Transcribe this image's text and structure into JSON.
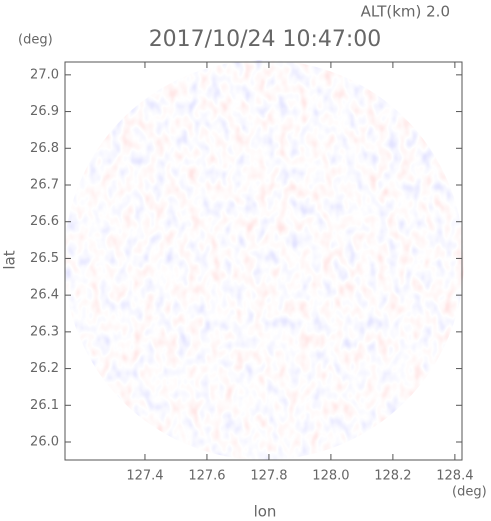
{
  "chart_data": {
    "type": "radar-ppi",
    "title": "2017/10/24 10:47:00",
    "subtitle": "ALT(km) 2.0",
    "x_label": "lon",
    "y_label": "lat",
    "x_unit": "(deg)",
    "y_unit": "(deg)",
    "xlim": [
      127.142,
      128.423
    ],
    "ylim": [
      25.951,
      27.035
    ],
    "xticks": [
      127.4,
      127.6,
      127.8,
      {
        "value": 128,
        "label": "128.0"
      },
      128.2,
      128.4
    ],
    "yticks": [
      {
        "value": 26,
        "label": "26.0"
      },
      26.1,
      26.2,
      26.3,
      26.4,
      26.5,
      26.6,
      26.7,
      26.8,
      26.9,
      {
        "value": 27,
        "label": "27.0"
      }
    ]
  }
}
